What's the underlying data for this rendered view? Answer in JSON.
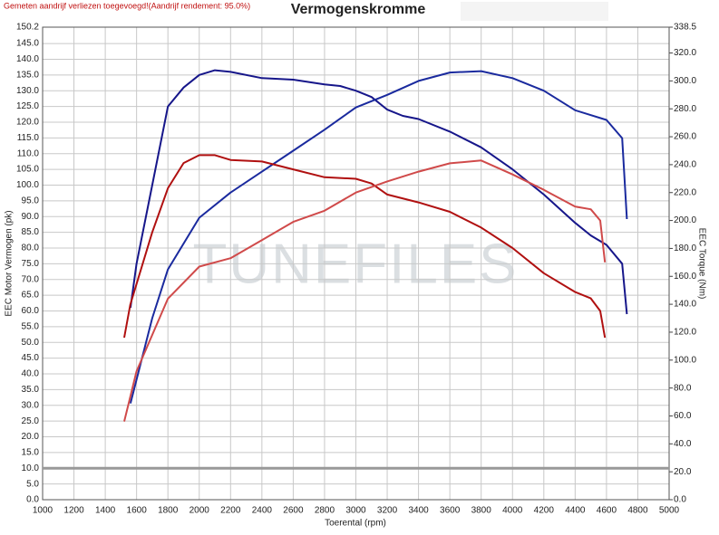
{
  "chart_data": {
    "type": "line",
    "title": "Vermogenskromme",
    "subtitle": "Gemeten aandrijf verliezen toegevoegd!(Aandrijf rendement: 95.0%)",
    "watermark": "TUNEFILES",
    "x_label": "Toerental (rpm)",
    "y_label": "EEC Motor Vermogen (pk)",
    "y2_label": "EEC Torque (Nm)",
    "xlim": [
      1000,
      5000
    ],
    "xticks": [
      1000,
      1200,
      1400,
      1600,
      1800,
      2000,
      2200,
      2400,
      2600,
      2800,
      3000,
      3200,
      3400,
      3600,
      3800,
      4000,
      4200,
      4400,
      4600,
      4800,
      5000
    ],
    "ylim": [
      0,
      150.2
    ],
    "yticks": [
      {
        "value": 0,
        "label": "0.0"
      },
      {
        "value": 5,
        "label": "5.0"
      },
      {
        "value": 10,
        "label": "10.0"
      },
      {
        "value": 15,
        "label": "15.0"
      },
      {
        "value": 20,
        "label": "20.0"
      },
      {
        "value": 25,
        "label": "25.0"
      },
      {
        "value": 30,
        "label": "30.0"
      },
      {
        "value": 35,
        "label": "35.0"
      },
      {
        "value": 40,
        "label": "40.0"
      },
      {
        "value": 45,
        "label": "45.0"
      },
      {
        "value": 50,
        "label": "50.0"
      },
      {
        "value": 55,
        "label": "55.0"
      },
      {
        "value": 60,
        "label": "60.0"
      },
      {
        "value": 65,
        "label": "65.0"
      },
      {
        "value": 70,
        "label": "70.0"
      },
      {
        "value": 75,
        "label": "75.0"
      },
      {
        "value": 80,
        "label": "80.0"
      },
      {
        "value": 85,
        "label": "85.0"
      },
      {
        "value": 90,
        "label": "90.0"
      },
      {
        "value": 95,
        "label": "95.0"
      },
      {
        "value": 100,
        "label": "100.0"
      },
      {
        "value": 105,
        "label": "105.0"
      },
      {
        "value": 110,
        "label": "110.0"
      },
      {
        "value": 115,
        "label": "115.0"
      },
      {
        "value": 120,
        "label": "120.0"
      },
      {
        "value": 125,
        "label": "125.0"
      },
      {
        "value": 130,
        "label": "130.0"
      },
      {
        "value": 135,
        "label": "135.0"
      },
      {
        "value": 140,
        "label": "140.0"
      },
      {
        "value": 145,
        "label": "145.0"
      },
      {
        "value": 150.2,
        "label": "150.2"
      }
    ],
    "y2lim": [
      0,
      338.5
    ],
    "y2ticks": [
      {
        "value": 0,
        "label": "0.0"
      },
      {
        "value": 20,
        "label": "20.0"
      },
      {
        "value": 40,
        "label": "40.0"
      },
      {
        "value": 60,
        "label": "60.0"
      },
      {
        "value": 80,
        "label": "80.0"
      },
      {
        "value": 100,
        "label": "100.0"
      },
      {
        "value": 120,
        "label": "120.0"
      },
      {
        "value": 140,
        "label": "140.0"
      },
      {
        "value": 160,
        "label": "160.0"
      },
      {
        "value": 180,
        "label": "180.0"
      },
      {
        "value": 200,
        "label": "200.0"
      },
      {
        "value": 220,
        "label": "220.0"
      },
      {
        "value": 240,
        "label": "240.0"
      },
      {
        "value": 260,
        "label": "260.0"
      },
      {
        "value": 280,
        "label": "280.0"
      },
      {
        "value": 300,
        "label": "300.0"
      },
      {
        "value": 320,
        "label": "320.0"
      },
      {
        "value": 338.5,
        "label": "338.5"
      }
    ],
    "grid": true,
    "reference_line": 10,
    "series": [
      {
        "color": "#16168a",
        "axis": "y",
        "x": [
          1561,
          1600,
          1700,
          1800,
          1900,
          2000,
          2100,
          2200,
          2400,
          2600,
          2800,
          2900,
          3000,
          3100,
          3200,
          3300,
          3400,
          3600,
          3800,
          4000,
          4200,
          4400,
          4500,
          4600,
          4700,
          4730
        ],
        "values": [
          61,
          75,
          100,
          125,
          131,
          135,
          136.5,
          136,
          134,
          133.5,
          132,
          131.5,
          130,
          128,
          124,
          122,
          121,
          117,
          112,
          105,
          97,
          88,
          84,
          81,
          75,
          59
        ]
      },
      {
        "color": "#1a2a9e",
        "axis": "y2",
        "x": [
          1561,
          1700,
          1800,
          2000,
          2200,
          2400,
          2600,
          2800,
          3000,
          3200,
          3400,
          3600,
          3800,
          4000,
          4200,
          4400,
          4600,
          4700,
          4730
        ],
        "values": [
          69,
          130,
          165,
          202,
          220,
          235,
          250,
          265,
          281,
          290,
          300,
          306,
          307,
          302,
          293,
          279,
          272,
          259,
          201
        ]
      },
      {
        "color": "#b01010",
        "axis": "y",
        "x": [
          1521,
          1560,
          1700,
          1800,
          1900,
          2000,
          2100,
          2200,
          2400,
          2600,
          2800,
          3000,
          3100,
          3200,
          3400,
          3600,
          3800,
          4000,
          4200,
          4400,
          4500,
          4560,
          4590
        ],
        "values": [
          51.5,
          62,
          85,
          99,
          107,
          109.5,
          109.5,
          108,
          107.5,
          105,
          102.5,
          102,
          100.5,
          97,
          94.5,
          91.5,
          86.5,
          80,
          72,
          66,
          64,
          60,
          51.5
        ]
      },
      {
        "color": "#d04a4a",
        "axis": "y2",
        "x": [
          1521,
          1600,
          1800,
          2000,
          2200,
          2400,
          2600,
          2800,
          3000,
          3200,
          3400,
          3600,
          3800,
          4000,
          4200,
          4400,
          4500,
          4560,
          4590
        ],
        "values": [
          56,
          92,
          144,
          167,
          173,
          186,
          199,
          207,
          220,
          228,
          235,
          241,
          243,
          233,
          222,
          210,
          208,
          200,
          170
        ]
      }
    ]
  }
}
